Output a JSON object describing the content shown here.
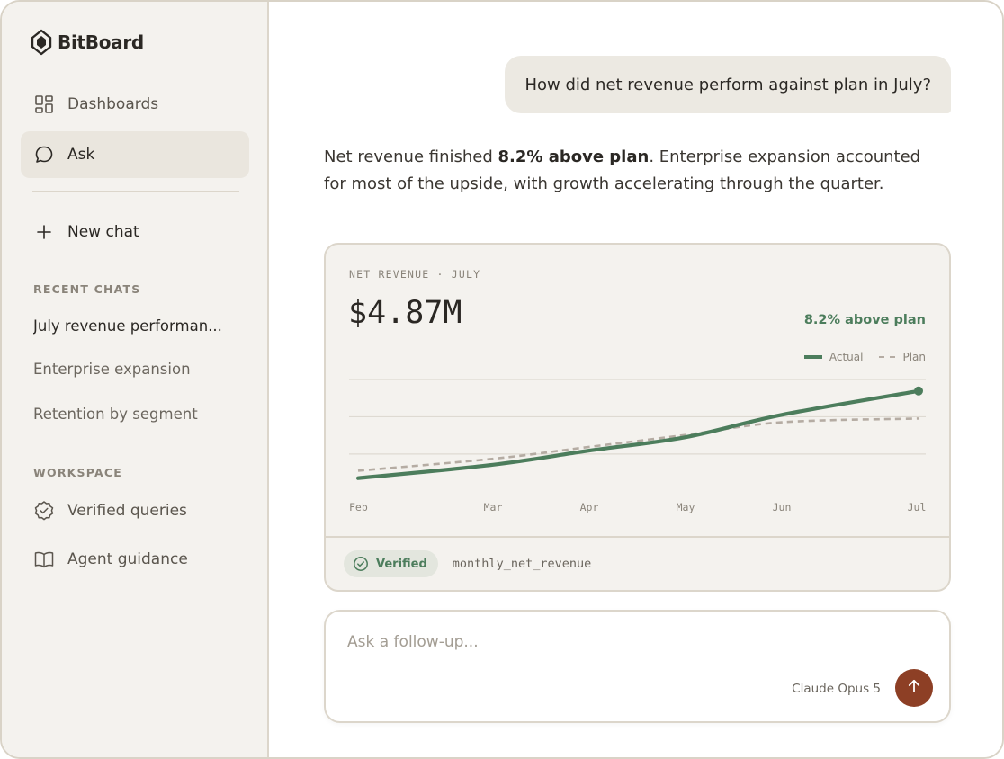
{
  "brand": {
    "name": "BitBoard",
    "icon": "bitboard-logo-icon"
  },
  "sidebar": {
    "nav": [
      {
        "label": "Dashboards",
        "icon": "dashboard-grid-icon",
        "active": false
      },
      {
        "label": "Ask",
        "icon": "chat-bubble-icon",
        "active": true
      }
    ],
    "new_chat": {
      "label": "New chat",
      "icon": "plus-icon"
    },
    "recent_label": "RECENT CHATS",
    "recent": [
      {
        "label": "July revenue performan..."
      },
      {
        "label": "Enterprise expansion"
      },
      {
        "label": "Retention by segment"
      }
    ],
    "workspace_label": "WORKSPACE",
    "workspace": [
      {
        "label": "Verified queries",
        "icon": "verified-badge-icon"
      },
      {
        "label": "Agent guidance",
        "icon": "open-book-icon"
      }
    ]
  },
  "conversation": {
    "user_message": "How did net revenue perform against plan in July?",
    "answer": {
      "before": "Net revenue finished ",
      "bold": "8.2% above plan",
      "after": ". Enterprise expansion accounted for most of the upside, with growth accelerating through the quarter."
    }
  },
  "card": {
    "label": "NET REVENUE · JULY",
    "value": "$4.87M",
    "delta": "8.2% above plan",
    "footer": {
      "badge": "Verified",
      "badge_icon": "check-circle-icon",
      "query": "monthly_net_revenue"
    }
  },
  "chart_data": {
    "type": "line",
    "x": [
      "Feb",
      "Mar",
      "Apr",
      "May",
      "Jun",
      "Jul"
    ],
    "series": [
      {
        "name": "Actual",
        "values": [
          3.7,
          3.88,
          4.07,
          4.25,
          4.55,
          4.87
        ]
      },
      {
        "name": "Plan",
        "values": [
          3.8,
          3.96,
          4.12,
          4.28,
          4.45,
          4.5
        ]
      }
    ],
    "ylim": [
      3.6,
      5.0
    ],
    "grid": true,
    "legend": "top-right",
    "colors": {
      "Actual": "#4c7d5c",
      "Plan": "#b5aca3"
    }
  },
  "composer": {
    "placeholder": "Ask a follow-up...",
    "value": "",
    "model": "Claude Opus 5",
    "send_icon": "arrow-up-icon"
  },
  "colors": {
    "accent": "#8d3f25",
    "positive": "#4c7d5c",
    "sidebar_bg": "#f4f2ee"
  }
}
